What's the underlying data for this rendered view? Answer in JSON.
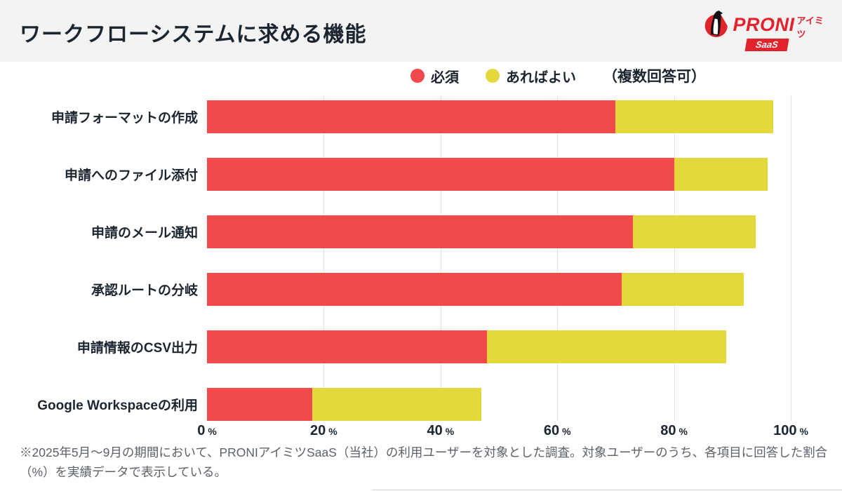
{
  "header": {
    "title": "ワークフローシステムに求める機能",
    "logo": {
      "brand": "PRONI",
      "brand_sub": "アイミツ",
      "badge": "SaaS",
      "brand_color": "#e3232c"
    }
  },
  "legend": {
    "items": [
      {
        "label": "必須",
        "color": "#f2494b"
      },
      {
        "label": "あればよい",
        "color": "#e5d83c"
      }
    ],
    "note": "（複数回答可）"
  },
  "chart_data": {
    "type": "bar",
    "orientation": "horizontal",
    "stacked": true,
    "categories": [
      "申請フォーマットの作成",
      "申請へのファイル添付",
      "申請のメール通知",
      "承認ルートの分岐",
      "申請情報のCSV出力",
      "Google Workspaceの利用"
    ],
    "series": [
      {
        "name": "必須",
        "color": "#f2494b",
        "values": [
          70,
          80,
          73,
          71,
          48,
          18
        ]
      },
      {
        "name": "あればよい",
        "color": "#e5d83c",
        "values": [
          27,
          16,
          21,
          21,
          41,
          29
        ]
      }
    ],
    "totals": [
      97,
      96,
      94,
      92,
      89,
      47
    ],
    "xlim": [
      0,
      100
    ],
    "xticks": [
      0,
      20,
      40,
      60,
      80,
      100
    ],
    "xtick_suffix": "%",
    "grid": "vertical",
    "legend_position": "top"
  },
  "footnote": {
    "text": "※2025年5月〜9月の期間において、PRONIアイミツSaaS（当社）の利用ユーザーを対象とした調査。対象ユーザーのうち、各項目に回答した割合（%）を実績データで表示している。"
  }
}
